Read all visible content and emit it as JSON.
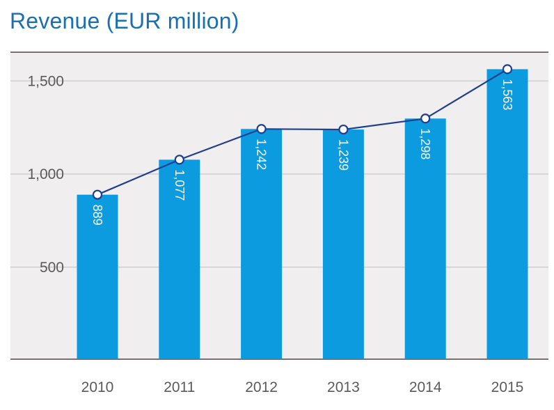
{
  "colors": {
    "plot_bg": "#f0eeee",
    "bar": "#0d9be0",
    "line": "#1f3f8f",
    "marker_fill": "#ffffff",
    "grid": "#c9c9c9",
    "axis": "#7a7070",
    "title": "#1a6fb3",
    "tick_text": "#5a5a5a"
  },
  "chart_data": {
    "type": "bar",
    "title": "Revenue (EUR million)",
    "xlabel": "",
    "ylabel": "",
    "categories": [
      "2010",
      "2011",
      "2012",
      "2013",
      "2014",
      "2015"
    ],
    "values": [
      889,
      1077,
      1242,
      1239,
      1298,
      1563
    ],
    "value_labels": [
      "889",
      "1,077",
      "1,242",
      "1,239",
      "1,298",
      "1,563"
    ],
    "overlay": "line with circle markers at the same values",
    "ylim": [
      0,
      1700
    ],
    "yticks": [
      500,
      1000,
      1500
    ],
    "ytick_labels": [
      "500",
      "1,000",
      "1,500"
    ],
    "grid": true,
    "legend": "none"
  }
}
